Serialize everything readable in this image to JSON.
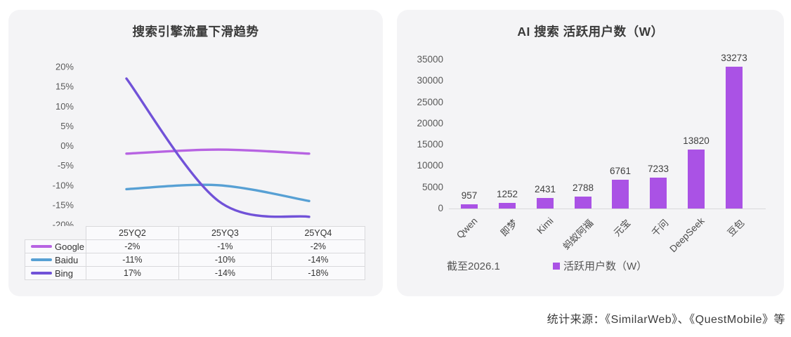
{
  "page": {
    "footer": "统计来源：《SimilarWeb》、《QuestMobile》等"
  },
  "chart_data": [
    {
      "type": "line",
      "title": "搜索引擎流量下滑趋势",
      "categories": [
        "25YQ2",
        "25YQ3",
        "25YQ4"
      ],
      "series": [
        {
          "name": "Google",
          "color": "#b763e2",
          "values": [
            -2,
            -1,
            -2
          ],
          "display": [
            "-2%",
            "-1%",
            "-2%"
          ]
        },
        {
          "name": "Baidu",
          "color": "#57a0d4",
          "values": [
            -11,
            -10,
            -14
          ],
          "display": [
            "-11%",
            "-10%",
            "-14%"
          ]
        },
        {
          "name": "Bing",
          "color": "#7152d8",
          "values": [
            17,
            -14,
            -18
          ],
          "display": [
            "17%",
            "-14%",
            "-18%"
          ]
        }
      ],
      "y_ticks": [
        "20%",
        "15%",
        "10%",
        "5%",
        "0%",
        "-5%",
        "-10%",
        "-15%",
        "-20%"
      ],
      "ylim": [
        -20,
        20
      ],
      "grid": false,
      "legend_position": "table-left"
    },
    {
      "type": "bar",
      "title": "AI 搜索 活跃用户数（W）",
      "categories": [
        "Qwen",
        "即梦",
        "Kimi",
        "蚂蚁阿福",
        "元宝",
        "千问",
        "DeepSeek",
        "豆包"
      ],
      "values": [
        957,
        1252,
        2431,
        2788,
        6761,
        7233,
        13820,
        33273
      ],
      "y_ticks": [
        35000,
        30000,
        25000,
        20000,
        15000,
        10000,
        5000,
        0
      ],
      "ylim": [
        0,
        35000
      ],
      "bar_color": "#aa52e5",
      "grid": false,
      "note": "截至2026.1",
      "legend": "活跃用户数（W）",
      "legend_position": "bottom"
    }
  ]
}
